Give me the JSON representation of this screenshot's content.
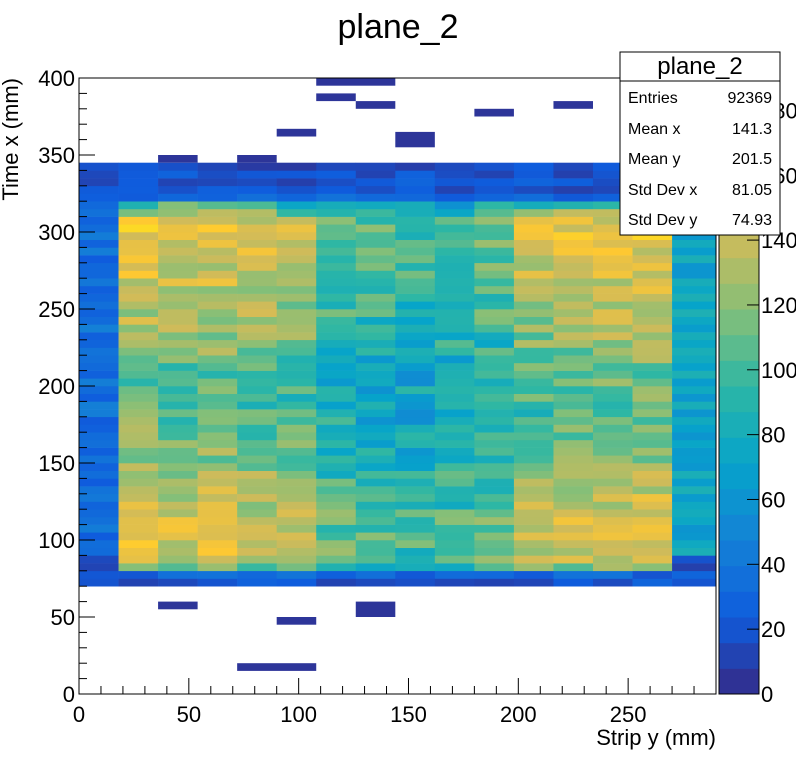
{
  "chart_data": {
    "type": "heatmap",
    "title": "plane_2",
    "xlabel": "Strip y (mm)",
    "ylabel": "Time x (mm)",
    "xlim": [
      0,
      290
    ],
    "ylim": [
      0,
      400
    ],
    "zlim": [
      0,
      190
    ],
    "x_ticks": [
      0,
      50,
      100,
      150,
      200,
      250
    ],
    "y_ticks": [
      0,
      50,
      100,
      150,
      200,
      250,
      300,
      350,
      400
    ],
    "z_ticks": [
      0,
      20,
      40,
      60,
      80,
      100,
      120,
      140,
      160,
      180
    ],
    "z_tick_labels": [
      "0",
      "20",
      "40",
      "60",
      "80",
      "100",
      "120",
      "140",
      "160",
      "180"
    ],
    "x_bin_edges": [
      0,
      18,
      36,
      54,
      72,
      90,
      108,
      126,
      144,
      162,
      180,
      198,
      216,
      234,
      252,
      270,
      290
    ],
    "y_bin_start": 50,
    "y_bin_height": 5,
    "cells_summary": "z values per bin, columns left to right, rows from y=50 upward (bin width 5 mm); sparse outlier bins listed separately",
    "body": {
      "rows_y": [
        70,
        75,
        80,
        85,
        90,
        95,
        100,
        105,
        110,
        115,
        120,
        125,
        130,
        135,
        140,
        145,
        150,
        155,
        160,
        165,
        170,
        175,
        180,
        185,
        190,
        195,
        200,
        205,
        210,
        215,
        220,
        225,
        230,
        235,
        240,
        245,
        250,
        255,
        260,
        265,
        270,
        275,
        280,
        285,
        290,
        295,
        300,
        305,
        310,
        315,
        320,
        325,
        330,
        335,
        340
      ],
      "column_profile": [
        40,
        158,
        150,
        150,
        142,
        134,
        128,
        118,
        110,
        118,
        132,
        140,
        148,
        155,
        160,
        110
      ],
      "row_profile_center": [
        20,
        40,
        95,
        150,
        160,
        158,
        170,
        165,
        160,
        150,
        140,
        135,
        130,
        125,
        118,
        110,
        100,
        95,
        90,
        85,
        80,
        75,
        70,
        70,
        68,
        68,
        70,
        72,
        78,
        85,
        92,
        98,
        105,
        110,
        118,
        125,
        130,
        135,
        140,
        145,
        150,
        150,
        155,
        160,
        170,
        175,
        185,
        160,
        100,
        60,
        40,
        20,
        20,
        20,
        10
      ]
    },
    "outliers": [
      {
        "x0": 108,
        "x1": 144,
        "y0": 395,
        "y1": 400,
        "z": 5
      },
      {
        "x0": 108,
        "x1": 126,
        "y0": 385,
        "y1": 390,
        "z": 5
      },
      {
        "x0": 126,
        "x1": 144,
        "y0": 380,
        "y1": 385,
        "z": 5
      },
      {
        "x0": 180,
        "x1": 198,
        "y0": 375,
        "y1": 380,
        "z": 5
      },
      {
        "x0": 216,
        "x1": 234,
        "y0": 380,
        "y1": 385,
        "z": 5
      },
      {
        "x0": 90,
        "x1": 108,
        "y0": 362,
        "y1": 367,
        "z": 5
      },
      {
        "x0": 144,
        "x1": 162,
        "y0": 355,
        "y1": 365,
        "z": 5
      },
      {
        "x0": 36,
        "x1": 54,
        "y0": 345,
        "y1": 350,
        "z": 5
      },
      {
        "x0": 72,
        "x1": 90,
        "y0": 345,
        "y1": 350,
        "z": 5
      },
      {
        "x0": 36,
        "x1": 54,
        "y0": 55,
        "y1": 60,
        "z": 5
      },
      {
        "x0": 126,
        "x1": 144,
        "y0": 50,
        "y1": 60,
        "z": 5
      },
      {
        "x0": 90,
        "x1": 108,
        "y0": 45,
        "y1": 50,
        "z": 5
      },
      {
        "x0": 72,
        "x1": 108,
        "y0": 15,
        "y1": 20,
        "z": 5
      }
    ]
  },
  "stats_box": {
    "title": "plane_2",
    "rows": [
      {
        "label": "Entries",
        "value": "92369"
      },
      {
        "label": "Mean x",
        "value": "141.3"
      },
      {
        "label": "Mean y",
        "value": "201.5"
      },
      {
        "label": "Std Dev x",
        "value": "81.05"
      },
      {
        "label": "Std Dev y",
        "value": "74.93"
      }
    ]
  },
  "palette": [
    "#352a87",
    "#0f5cdd",
    "#1481d6",
    "#06a4ca",
    "#2eb7a4",
    "#87bf77",
    "#d1bb59",
    "#fec832",
    "#f9fb0e"
  ]
}
